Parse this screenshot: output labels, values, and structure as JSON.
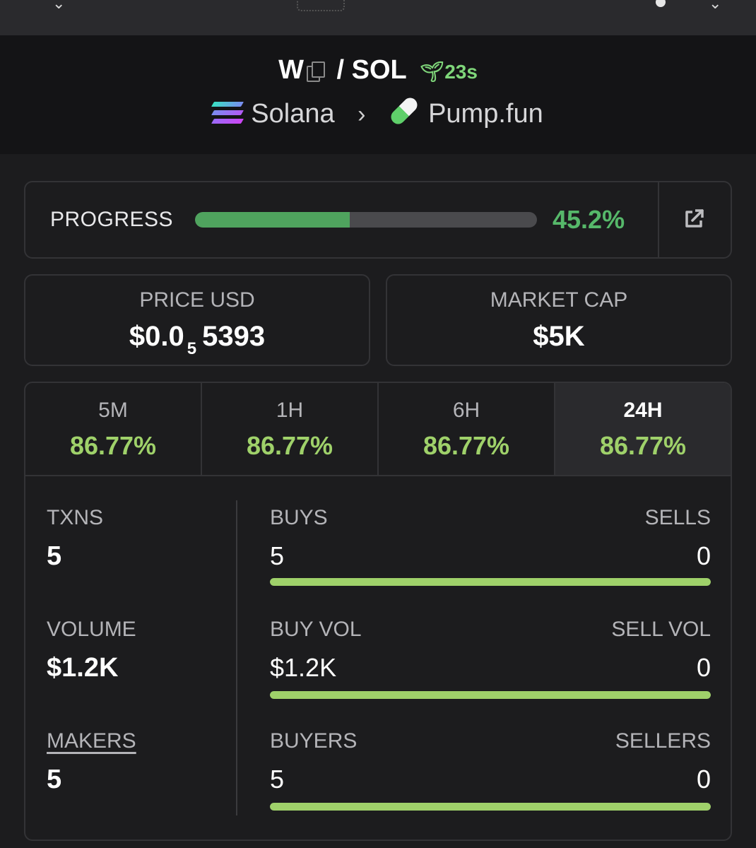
{
  "header": {
    "base_token": "W",
    "separator": "/",
    "quote_token": "SOL",
    "age": "23s",
    "chain": "Solana",
    "dex": "Pump.fun",
    "icons": [
      "copy-icon",
      "sprout-icon",
      "solana-logo",
      "chevron-right-icon",
      "pill-icon"
    ]
  },
  "progress": {
    "label": "PROGRESS",
    "value_text": "45.2%",
    "fraction": 0.452,
    "link_icon": "external-link-icon"
  },
  "price": {
    "label": "PRICE USD",
    "prefix": "$0.0",
    "zeros": "5",
    "digits": "5393"
  },
  "market_cap": {
    "label": "MARKET CAP",
    "value": "$5K"
  },
  "tabs": [
    {
      "label": "5M",
      "change": "86.77%"
    },
    {
      "label": "1H",
      "change": "86.77%"
    },
    {
      "label": "6H",
      "change": "86.77%"
    },
    {
      "label": "24H",
      "change": "86.77%",
      "active": true
    }
  ],
  "stats": {
    "txns": {
      "label": "TXNS",
      "value": "5"
    },
    "volume": {
      "label": "VOLUME",
      "value": "$1.2K"
    },
    "makers": {
      "label": "MAKERS",
      "value": "5"
    },
    "buys": {
      "label": "BUYS",
      "value": "5",
      "sell_label": "SELLS",
      "sell_value": "0",
      "buy_fraction": 1.0
    },
    "buy_vol": {
      "label": "BUY VOL",
      "value": "$1.2K",
      "sell_label": "SELL VOL",
      "sell_value": "0",
      "buy_fraction": 1.0
    },
    "buyers": {
      "label": "BUYERS",
      "value": "5",
      "sell_label": "SELLERS",
      "sell_value": "0",
      "buy_fraction": 1.0
    }
  },
  "colors": {
    "positive_green": "#9fd16a",
    "progress_green": "#4fa35e",
    "background": "#1c1c1e"
  }
}
